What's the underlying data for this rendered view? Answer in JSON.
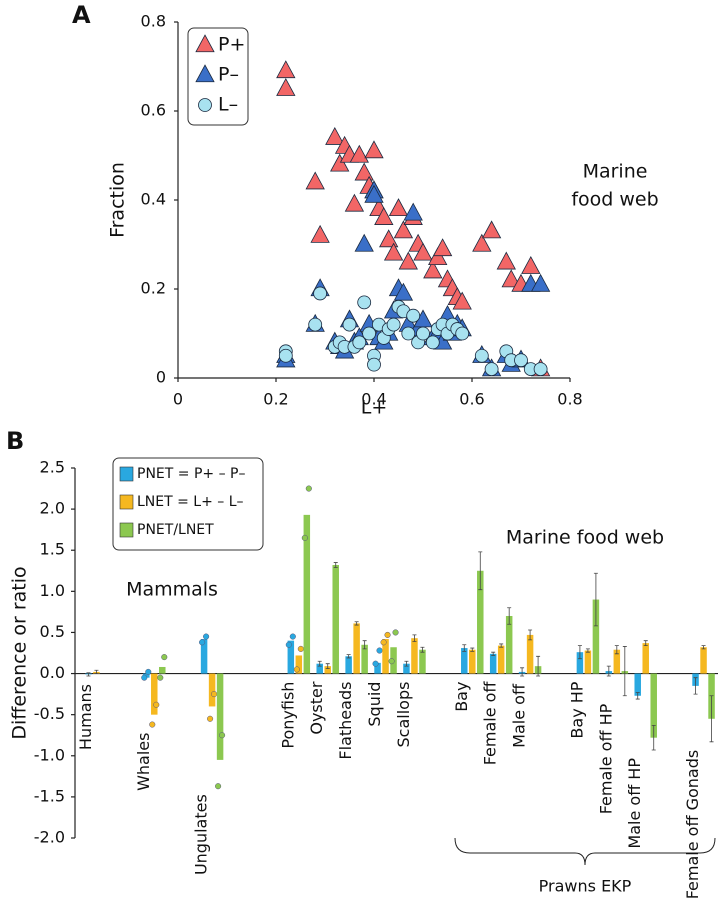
{
  "chart_data": [
    {
      "type": "scatter",
      "panel": "A",
      "xlabel": "L+",
      "ylabel": "Fraction",
      "annotations": [
        "Marine",
        "food web"
      ],
      "xlim": [
        0,
        0.8
      ],
      "xticks": [
        0,
        0.2,
        0.4,
        0.6,
        0.8
      ],
      "ylim": [
        0,
        0.8
      ],
      "yticks": [
        0,
        0.2,
        0.4,
        0.6,
        0.8
      ],
      "x": [
        0.22,
        0.22,
        0.28,
        0.29,
        0.32,
        0.33,
        0.34,
        0.35,
        0.36,
        0.37,
        0.38,
        0.39,
        0.4,
        0.4,
        0.41,
        0.42,
        0.43,
        0.44,
        0.45,
        0.46,
        0.47,
        0.48,
        0.49,
        0.5,
        0.52,
        0.53,
        0.54,
        0.55,
        0.56,
        0.57,
        0.58,
        0.62,
        0.64,
        0.67,
        0.68,
        0.7,
        0.72,
        0.74
      ],
      "series": [
        {
          "name": "P+",
          "color": "#f26666",
          "marker": "triangle",
          "values": [
            0.69,
            0.65,
            0.44,
            0.32,
            0.54,
            0.48,
            0.52,
            0.5,
            0.39,
            0.5,
            0.46,
            0.43,
            0.42,
            0.51,
            0.38,
            0.36,
            0.31,
            0.28,
            0.38,
            0.33,
            0.26,
            0.36,
            0.3,
            0.28,
            0.24,
            0.27,
            0.29,
            0.22,
            0.2,
            0.18,
            0.17,
            0.3,
            0.33,
            0.26,
            0.22,
            0.21,
            0.25,
            0.02
          ]
        },
        {
          "name": "P–",
          "color": "#3a6fc8",
          "marker": "triangle",
          "values": [
            0.05,
            0.04,
            0.12,
            0.2,
            0.08,
            0.07,
            0.06,
            0.13,
            0.08,
            0.09,
            0.3,
            0.12,
            0.42,
            0.41,
            0.09,
            0.08,
            0.1,
            0.15,
            0.2,
            0.19,
            0.12,
            0.37,
            0.11,
            0.13,
            0.09,
            0.1,
            0.08,
            0.14,
            0.1,
            0.12,
            0.11,
            0.05,
            0.02,
            0.05,
            0.03,
            0.04,
            0.21,
            0.21
          ]
        },
        {
          "name": "L–",
          "color": "#a8e2f0",
          "marker": "circle",
          "values": [
            0.06,
            0.05,
            0.12,
            0.19,
            0.07,
            0.08,
            0.07,
            0.12,
            0.07,
            0.08,
            0.17,
            0.1,
            0.05,
            0.03,
            0.12,
            0.09,
            0.11,
            0.12,
            0.16,
            0.15,
            0.1,
            0.14,
            0.08,
            0.1,
            0.08,
            0.11,
            0.12,
            0.1,
            0.12,
            0.11,
            0.1,
            0.05,
            0.02,
            0.06,
            0.04,
            0.04,
            0.02,
            0.02
          ]
        }
      ]
    },
    {
      "type": "bar",
      "panel": "B",
      "ylabel": "Difference or ratio",
      "annotations": [
        "Marine food web",
        "Mammals"
      ],
      "bracket_label": "Prawns EKP",
      "ylim": [
        -2,
        2.5
      ],
      "yticks": [
        {
          "value": 2.5,
          "label": "2.5"
        },
        {
          "value": 2,
          "label": "2.0"
        },
        {
          "value": 1.5,
          "label": "1.5"
        },
        {
          "value": 1,
          "label": "1.0"
        },
        {
          "value": 0.5,
          "label": "0.5"
        },
        {
          "value": 0,
          "label": "0.0"
        },
        {
          "value": -0.5,
          "label": "-0.5"
        },
        {
          "value": -1,
          "label": "-1.0"
        },
        {
          "value": -1.5,
          "label": "-1.5"
        },
        {
          "value": -2,
          "label": "-2.0"
        }
      ],
      "categories": [
        "Humans",
        null,
        "Whales",
        null,
        "Ungulates",
        null,
        null,
        "Ponyfish",
        "Oyster",
        "Flatheads",
        "Squid",
        "Scallops",
        null,
        "Bay",
        "Female off",
        "Male off",
        null,
        "Bay HP",
        "Female off HP",
        "Male off HP",
        null,
        "Female off Gonads"
      ],
      "series": [
        {
          "name": "PNET = P+ – P–",
          "color": "#29a8e0",
          "values": [
            -0.01,
            null,
            -0.05,
            null,
            0.42,
            null,
            null,
            0.4,
            0.12,
            0.21,
            0.13,
            0.12,
            null,
            0.31,
            0.24,
            0.02,
            null,
            0.26,
            0.03,
            -0.27,
            null,
            -0.15
          ],
          "errors": [
            0.02,
            null,
            null,
            null,
            null,
            null,
            null,
            null,
            0.03,
            0.02,
            null,
            0.03,
            null,
            0.04,
            0.02,
            0.05,
            null,
            0.08,
            0.06,
            0.04,
            null,
            0.1
          ],
          "points": [
            null,
            null,
            [
              0.02,
              -0.05
            ],
            null,
            [
              0.45,
              0.38
            ],
            null,
            null,
            [
              0.45,
              0.35
            ],
            null,
            null,
            [
              0.28,
              0.12
            ],
            null,
            null,
            null,
            null,
            null,
            null,
            null,
            null,
            null,
            null,
            null
          ]
        },
        {
          "name": "LNET = L+ – L–",
          "color": "#f5b820",
          "values": [
            0.02,
            null,
            -0.5,
            null,
            -0.4,
            null,
            null,
            0.22,
            0.09,
            0.61,
            0.42,
            0.43,
            null,
            0.29,
            0.34,
            0.47,
            null,
            0.28,
            0.29,
            0.37,
            null,
            0.32
          ],
          "errors": [
            0.02,
            null,
            null,
            null,
            null,
            null,
            null,
            null,
            0.03,
            0.02,
            null,
            0.04,
            null,
            0.02,
            0.02,
            0.06,
            null,
            0.02,
            0.05,
            0.03,
            null,
            0.02
          ],
          "points": [
            null,
            null,
            [
              -0.38,
              -0.62
            ],
            null,
            [
              -0.25,
              -0.55
            ],
            null,
            null,
            [
              0.3,
              0.05
            ],
            null,
            null,
            [
              0.47,
              0.38
            ],
            null,
            null,
            null,
            null,
            null,
            null,
            null,
            null,
            null,
            null,
            null
          ]
        },
        {
          "name": "PNET/LNET",
          "color": "#8cc850",
          "values": [
            null,
            null,
            0.08,
            null,
            -1.05,
            null,
            null,
            1.93,
            1.32,
            0.35,
            0.32,
            0.29,
            null,
            1.25,
            0.7,
            0.09,
            null,
            0.9,
            0.03,
            -0.78,
            null,
            -0.55
          ],
          "errors": [
            null,
            null,
            null,
            null,
            null,
            null,
            null,
            null,
            0.03,
            0.05,
            null,
            0.03,
            null,
            0.23,
            0.1,
            0.12,
            null,
            0.32,
            0.3,
            0.15,
            null,
            0.28
          ],
          "points": [
            null,
            null,
            [
              0.2,
              -0.05
            ],
            null,
            [
              -0.75,
              -1.37
            ],
            null,
            null,
            [
              2.25,
              1.65
            ],
            null,
            null,
            [
              0.5,
              0.15
            ],
            null,
            null,
            null,
            null,
            null,
            null,
            null,
            null,
            null,
            null,
            null
          ]
        }
      ]
    }
  ]
}
